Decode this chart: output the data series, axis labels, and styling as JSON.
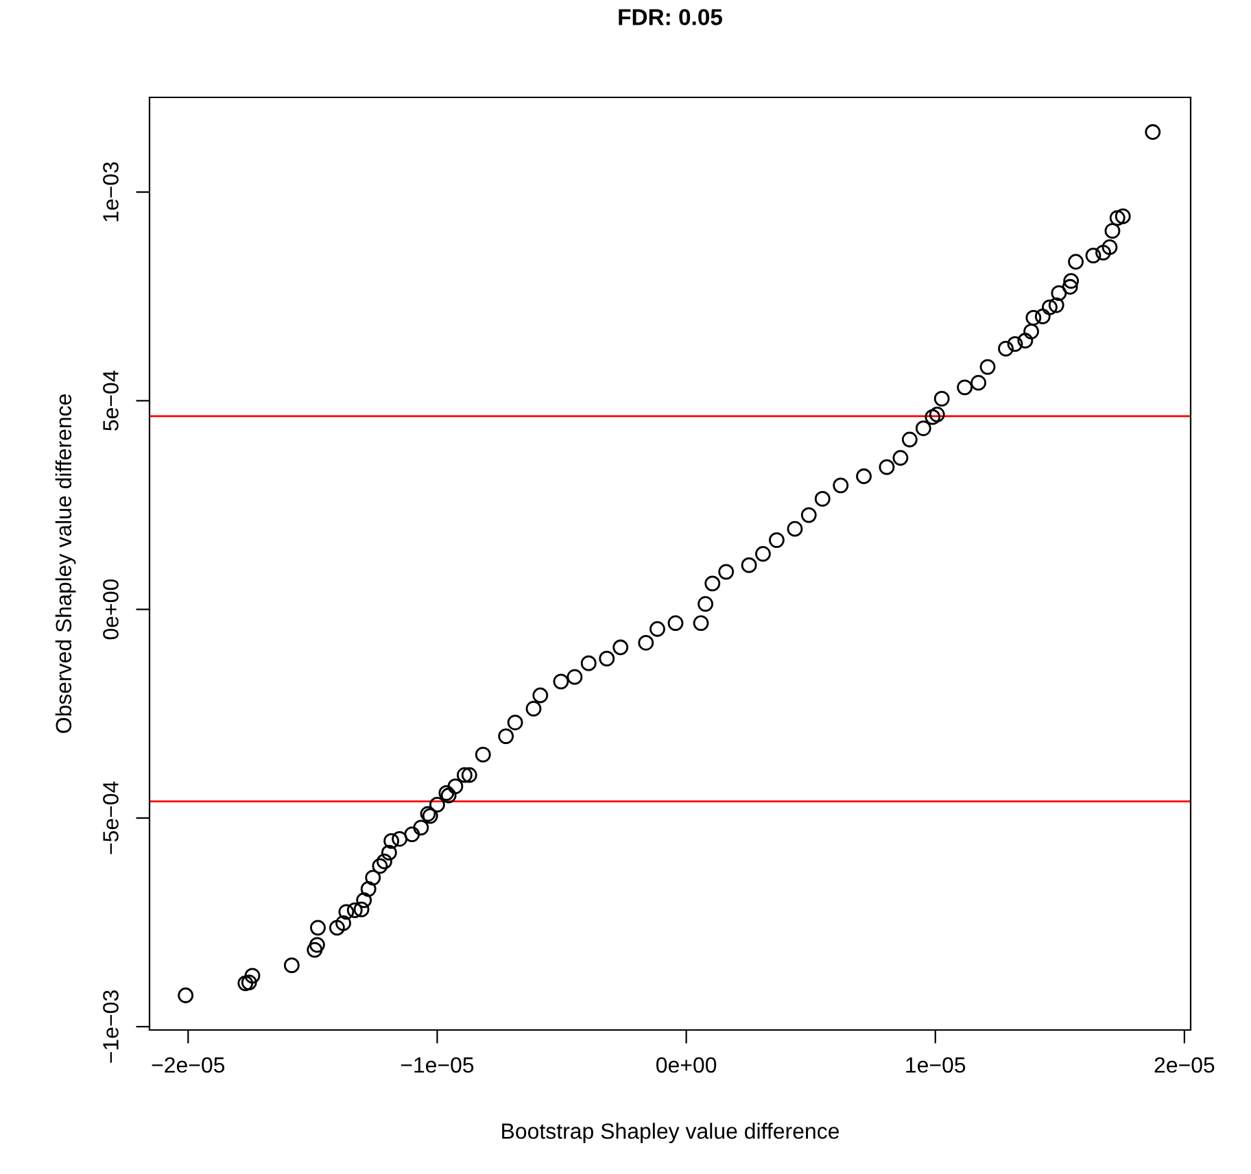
{
  "chart_data": {
    "type": "scatter",
    "title": "FDR: 0.05",
    "xlabel": "Bootstrap Shapley value difference",
    "ylabel": "Observed Shapley value difference",
    "xlim": [
      -2.155e-05,
      2.025e-05
    ],
    "ylim": [
      -0.001008,
      0.001227
    ],
    "xticks": [
      {
        "value": -2e-05,
        "label": "−2e−05"
      },
      {
        "value": -1e-05,
        "label": "−1e−05"
      },
      {
        "value": 0,
        "label": "0e+00"
      },
      {
        "value": 1e-05,
        "label": "1e−05"
      },
      {
        "value": 2e-05,
        "label": "2e−05"
      }
    ],
    "yticks": [
      {
        "value": -0.001,
        "label": "−1e−03"
      },
      {
        "value": -0.0005,
        "label": "−5e−04"
      },
      {
        "value": 0,
        "label": "0e+00"
      },
      {
        "value": 0.0005,
        "label": "5e−04"
      },
      {
        "value": 0.001,
        "label": "1e−03"
      }
    ],
    "grid": false,
    "marker": "circle",
    "ref_lines": [
      {
        "axis": "y",
        "value": 0.000463,
        "color": "#ff0000"
      },
      {
        "axis": "y",
        "value": -0.00046,
        "color": "#ff0000"
      }
    ],
    "series": [
      {
        "color": "#000000",
        "x": [
          -2.01e-05,
          -1.77e-05,
          -1.755e-05,
          -1.742e-05,
          -1.584e-05,
          -1.492e-05,
          -1.482e-05,
          -1.479e-05,
          -1.402e-05,
          -1.377e-05,
          -1.365e-05,
          -1.331e-05,
          -1.304e-05,
          -1.294e-05,
          -1.276e-05,
          -1.258e-05,
          -1.23e-05,
          -1.212e-05,
          -1.193e-05,
          -1.184e-05,
          -1.151e-05,
          -1.101e-05,
          -1.065e-05,
          -1.037e-05,
          -1.028e-05,
          -1e-05,
          -9.63e-06,
          -9.54e-06,
          -9.27e-06,
          -8.9e-06,
          -8.71e-06,
          -8.16e-06,
          -7.24e-06,
          -6.87e-06,
          -6.13e-06,
          -5.86e-06,
          -5.03e-06,
          -4.48e-06,
          -3.92e-06,
          -3.19e-06,
          -2.64e-06,
          -1.62e-06,
          -1.16e-06,
          -4.3e-07,
          5.9e-07,
          7.7e-07,
          1.05e-06,
          1.6e-06,
          2.52e-06,
          3.08e-06,
          3.63e-06,
          4.36e-06,
          4.92e-06,
          5.47e-06,
          6.2e-06,
          7.13e-06,
          8.05e-06,
          8.6e-06,
          8.97e-06,
          9.52e-06,
          9.89e-06,
          1.007e-05,
          1.026e-05,
          1.118e-05,
          1.173e-05,
          1.21e-05,
          1.283e-05,
          1.32e-05,
          1.361e-05,
          1.385e-05,
          1.394e-05,
          1.431e-05,
          1.459e-05,
          1.486e-05,
          1.496e-05,
          1.541e-05,
          1.545e-05,
          1.564e-05,
          1.634e-05,
          1.674e-05,
          1.7e-05,
          1.711e-05,
          1.731e-05,
          1.753e-05,
          1.873e-05
        ],
        "values": [
          -0.000925,
          -0.000896,
          -0.000894,
          -0.000878,
          -0.000853,
          -0.000816,
          -0.000804,
          -0.000763,
          -0.000763,
          -0.000752,
          -0.000725,
          -0.000721,
          -0.000719,
          -0.000697,
          -0.00067,
          -0.000643,
          -0.000615,
          -0.000604,
          -0.000583,
          -0.000555,
          -0.00055,
          -0.000539,
          -0.000523,
          -0.00049,
          -0.000495,
          -0.000468,
          -0.00044,
          -0.000446,
          -0.000424,
          -0.000397,
          -0.000397,
          -0.000348,
          -0.000304,
          -0.000271,
          -0.000238,
          -0.000206,
          -0.000173,
          -0.000162,
          -0.000129,
          -0.000118,
          -9.1e-05,
          -8e-05,
          -4.7e-05,
          -3.3e-05,
          -3.3e-05,
          1.3e-05,
          6.2e-05,
          9e-05,
          0.000106,
          0.000133,
          0.000166,
          0.000193,
          0.000226,
          0.000265,
          0.000297,
          0.000319,
          0.000341,
          0.000363,
          0.000407,
          0.000434,
          0.000461,
          0.000467,
          0.000505,
          0.000532,
          0.000543,
          0.000581,
          0.000625,
          0.000636,
          0.000644,
          0.000666,
          0.000699,
          0.000702,
          0.000724,
          0.000729,
          0.000758,
          0.000773,
          0.000787,
          0.000833,
          0.000848,
          0.000855,
          0.000868,
          0.000907,
          0.000938,
          0.000942,
          0.001144
        ]
      }
    ]
  }
}
